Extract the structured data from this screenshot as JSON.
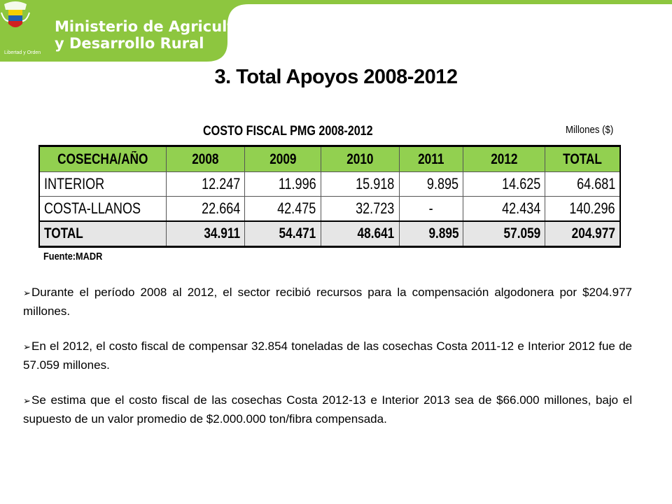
{
  "header": {
    "ministry_line1": "Ministerio de Agricultura",
    "ministry_line2": "y Desarrollo Rural",
    "motto": "Libertad y Orden",
    "brand_color": "#8dc63f",
    "icon": "coat-of-arms-icon"
  },
  "page": {
    "title": "3.  Total Apoyos 2008-2012"
  },
  "table": {
    "title": "COSTO FISCAL PMG 2008-2012",
    "units": "Millones ($)",
    "header_color": "#92d050",
    "columns": [
      "COSECHA/AÑO",
      "2008",
      "2009",
      "2010",
      "2011",
      "2012",
      "TOTAL"
    ],
    "rows": [
      [
        "INTERIOR",
        "12.247",
        "11.996",
        "15.918",
        "9.895",
        "14.625",
        "64.681"
      ],
      [
        "COSTA-LLANOS",
        "22.664",
        "42.475",
        "32.723",
        "-",
        "42.434",
        "140.296"
      ]
    ],
    "total_row": [
      "TOTAL",
      "34.911",
      "54.471",
      "48.641",
      "9.895",
      "57.059",
      "204.977"
    ],
    "source": "Fuente:MADR"
  },
  "bullets": [
    "Durante el período 2008 al 2012, el sector recibió recursos para la compensación algodonera por $204.977 millones.",
    "En el 2012, el costo fiscal de compensar 32.854 toneladas de las cosechas Costa 2011-12 e Interior 2012 fue de 57.059 millones.",
    "Se estima que el costo fiscal de las cosechas Costa 2012-13 e Interior 2013 sea de $66.000 millones, bajo el supuesto de un valor promedio de $2.000.000 ton/fibra compensada."
  ]
}
